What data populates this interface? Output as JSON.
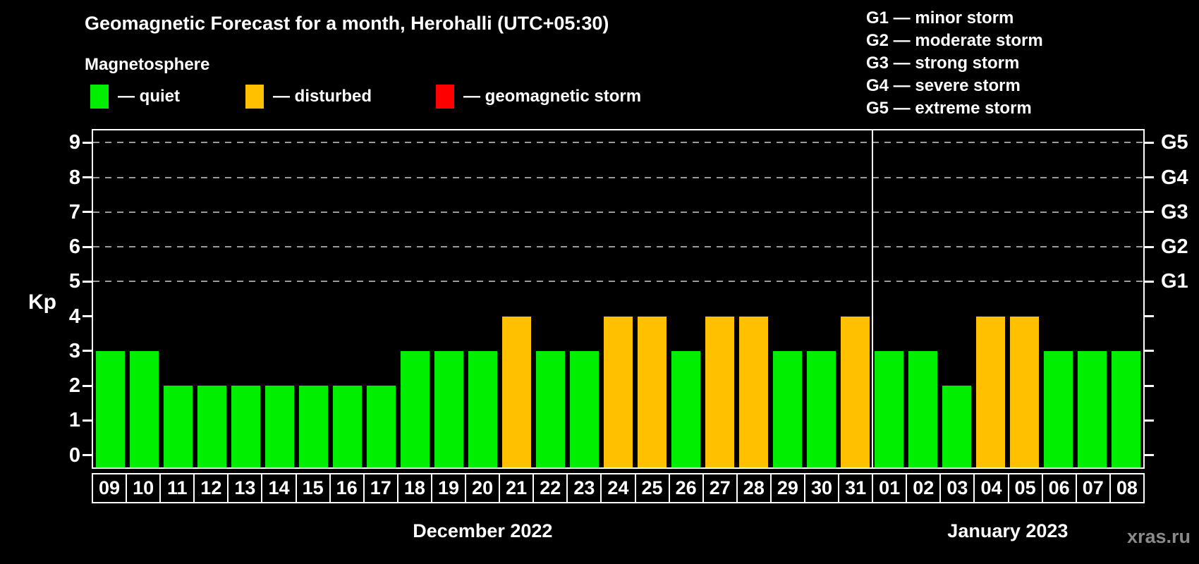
{
  "title": "Geomagnetic Forecast for a month, Herohalli (UTC+05:30)",
  "subtitle": "Magnetosphere",
  "legend": {
    "quiet_label": "— quiet",
    "disturbed_label": "— disturbed",
    "storm_label": "— geomagnetic storm"
  },
  "g_legend": [
    "G1 — minor storm",
    "G2 — moderate storm",
    "G3 — strong storm",
    "G4 — severe storm",
    "G5 — extreme storm"
  ],
  "axis": {
    "left_label": "Kp"
  },
  "footer": {
    "watermark": "xras.ru"
  },
  "colors": {
    "quiet": "#00ee00",
    "disturbed": "#ffc000",
    "storm": "#ff0000",
    "grid": "#9a9a9a",
    "background": "#000000"
  },
  "chart_data": {
    "type": "bar",
    "title": "Geomagnetic Forecast for a month, Herohalli (UTC+05:30)",
    "ylabel": "Kp",
    "categories": [
      "09",
      "10",
      "11",
      "12",
      "13",
      "14",
      "15",
      "16",
      "17",
      "18",
      "19",
      "20",
      "21",
      "22",
      "23",
      "24",
      "25",
      "26",
      "27",
      "28",
      "29",
      "30",
      "31",
      "01",
      "02",
      "03",
      "04",
      "05",
      "06",
      "07",
      "08"
    ],
    "values": [
      3,
      3,
      2,
      2,
      2,
      2,
      2,
      2,
      2,
      3,
      3,
      3,
      4,
      3,
      3,
      4,
      4,
      3,
      4,
      4,
      3,
      3,
      4,
      3,
      3,
      2,
      4,
      4,
      3,
      3,
      3
    ],
    "statuses": [
      "quiet",
      "quiet",
      "quiet",
      "quiet",
      "quiet",
      "quiet",
      "quiet",
      "quiet",
      "quiet",
      "quiet",
      "quiet",
      "quiet",
      "disturbed",
      "quiet",
      "quiet",
      "disturbed",
      "disturbed",
      "quiet",
      "disturbed",
      "disturbed",
      "quiet",
      "quiet",
      "disturbed",
      "quiet",
      "quiet",
      "quiet",
      "disturbed",
      "disturbed",
      "quiet",
      "quiet",
      "quiet"
    ],
    "months": [
      {
        "label": "December 2022",
        "start_index": 0,
        "count": 23
      },
      {
        "label": "January 2023",
        "start_index": 23,
        "count": 8
      }
    ],
    "divider_after_index": 22,
    "yticks": [
      0,
      1,
      2,
      3,
      4,
      5,
      6,
      7,
      8,
      9
    ],
    "ylim": [
      -0.35,
      9.35
    ],
    "grid_kp": [
      5,
      6,
      7,
      8,
      9
    ],
    "right_axis_labels": [
      {
        "kp": 5,
        "text": "G1"
      },
      {
        "kp": 6,
        "text": "G2"
      },
      {
        "kp": 7,
        "text": "G3"
      },
      {
        "kp": 8,
        "text": "G4"
      },
      {
        "kp": 9,
        "text": "G5"
      }
    ],
    "legend_position": "top-left",
    "grid": "dashed-horizontal"
  }
}
